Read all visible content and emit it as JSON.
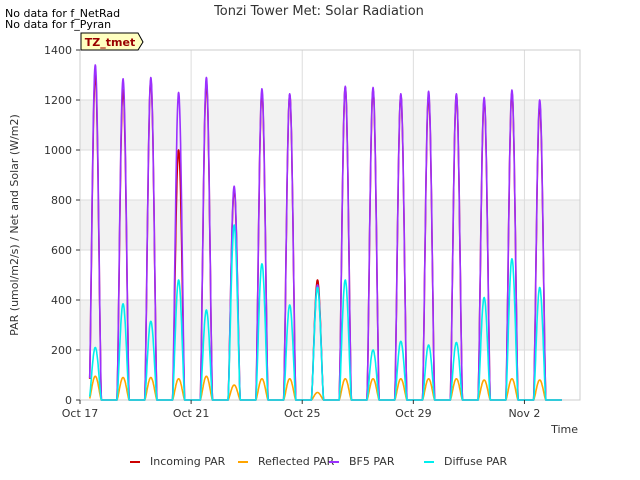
{
  "notes": [
    "No data for f_NetRad",
    "No data for f_Pyran"
  ],
  "chart_data": {
    "type": "line",
    "title": "Tonzi Tower Met: Solar Radiation",
    "xlabel": "Time",
    "ylabel": "PAR (umol/m2/s) / Net and Solar (W/m2)",
    "badge": "TZ_tmet",
    "xlim": [
      0,
      18
    ],
    "ylim": [
      0,
      1400
    ],
    "yticks": [
      0,
      200,
      400,
      600,
      800,
      1000,
      1200,
      1400
    ],
    "xticks": [
      {
        "day": 0,
        "label": "Oct 17"
      },
      {
        "day": 4,
        "label": "Oct 21"
      },
      {
        "day": 8,
        "label": "Oct 25"
      },
      {
        "day": 12,
        "label": "Oct 29"
      },
      {
        "day": 16,
        "label": "Nov 2"
      }
    ],
    "grid": true,
    "legend": "bottom",
    "series": [
      {
        "name": "Incoming PAR",
        "color": "#cc0000",
        "daily_peak": [
          1300,
          1240,
          1280,
          1000,
          1270,
          840,
          1230,
          1220,
          480,
          1250,
          1240,
          1220,
          1220,
          1220,
          1200,
          1230,
          1180
        ]
      },
      {
        "name": "Reflected PAR",
        "color": "#ffa500",
        "daily_peak": [
          95,
          90,
          90,
          85,
          95,
          60,
          85,
          85,
          30,
          85,
          85,
          85,
          85,
          85,
          80,
          85,
          80
        ]
      },
      {
        "name": "BF5 PAR",
        "color": "#9b30ff",
        "daily_peak": [
          1340,
          1285,
          1290,
          1230,
          1290,
          855,
          1245,
          1225,
          460,
          1255,
          1250,
          1225,
          1235,
          1225,
          1210,
          1240,
          1200
        ]
      },
      {
        "name": "Diffuse PAR",
        "color": "#00eeee",
        "daily_peak": [
          210,
          385,
          315,
          480,
          360,
          700,
          545,
          380,
          450,
          480,
          200,
          235,
          220,
          230,
          410,
          565,
          450
        ]
      }
    ]
  }
}
